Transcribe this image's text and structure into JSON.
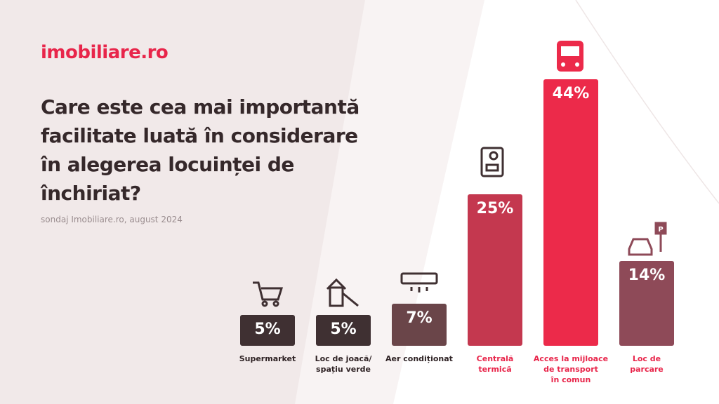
{
  "logo": "imobiliare.ro",
  "chart_data": {
    "type": "bar",
    "title": "Care este cea mai importantă\nfacilitate luată în considerare\nîn alegerea locuinței de\nînchiriat?",
    "subtitle": "sondaj Imobiliare.ro, august 2024",
    "categories": [
      "Supermarket",
      "Loc de joacă/\nspațiu verde",
      "Aer condiționat",
      "Centrală\ntermică",
      "Acces la mijloace\nde transport\nîn comun",
      "Loc de\nparcare"
    ],
    "values": [
      5,
      5,
      7,
      25,
      44,
      14
    ],
    "value_labels": [
      "5%",
      "5%",
      "7%",
      "25%",
      "44%",
      "14%"
    ],
    "colors": [
      "#3f3032",
      "#3f3032",
      "#6a4549",
      "#c4384f",
      "#ec2a4a",
      "#8e4a58"
    ],
    "label_colors": [
      "#2e2224",
      "#2e2224",
      "#2e2224",
      "#e8254a",
      "#e8254a",
      "#e8254a"
    ]
  }
}
